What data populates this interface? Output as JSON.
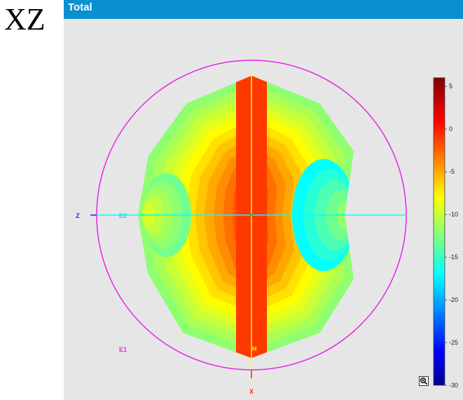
{
  "view_label": "XZ",
  "panel": {
    "title": "Total"
  },
  "chart_data": {
    "type": "contour",
    "title": "Total",
    "axis_labels": {
      "horizontal": "Z",
      "vertical": "X"
    },
    "markers": [
      "E1",
      "E2",
      "H"
    ],
    "colorbar": {
      "min": -30,
      "max": 6,
      "ticks": [
        5,
        0,
        -5,
        -10,
        -15,
        -20,
        -25,
        -30
      ]
    },
    "outer_boundary_shape": "circle",
    "pattern_levels_outer_to_inner": [
      -12,
      -11,
      -10,
      -9,
      -8,
      -7,
      -6,
      -5,
      -4,
      -3,
      -2,
      -1
    ],
    "left_lobe_min": -13,
    "right_lobe_min": -17
  }
}
